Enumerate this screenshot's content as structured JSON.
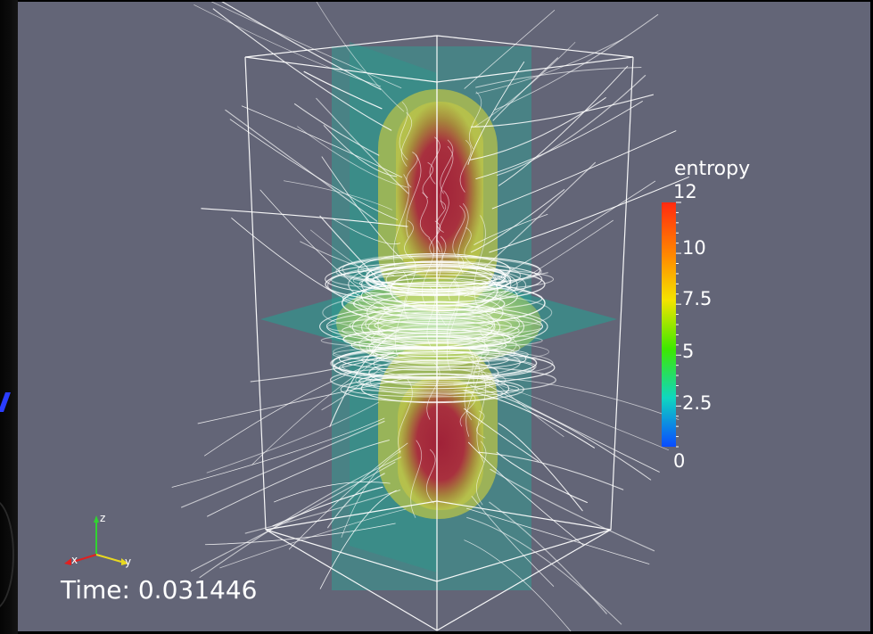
{
  "colorbar": {
    "title": "entropy",
    "range": [
      0,
      12
    ],
    "ticks": [
      "12",
      "10",
      "7.5",
      "5",
      "2.5",
      "0"
    ],
    "colors": [
      "#ff2a10",
      "#ff8a00",
      "#f4e400",
      "#3ee800",
      "#10d6c0",
      "#0a4bff"
    ]
  },
  "axes_triad": {
    "z": "z",
    "x": "x",
    "y": "y"
  },
  "time_label": "Time: 0.031446",
  "colors": {
    "background": "#636577",
    "slice_plane": "#2aa696",
    "core": "#9a2a3c",
    "shell": "#b8c24a",
    "streamlines": "#ffffff"
  }
}
